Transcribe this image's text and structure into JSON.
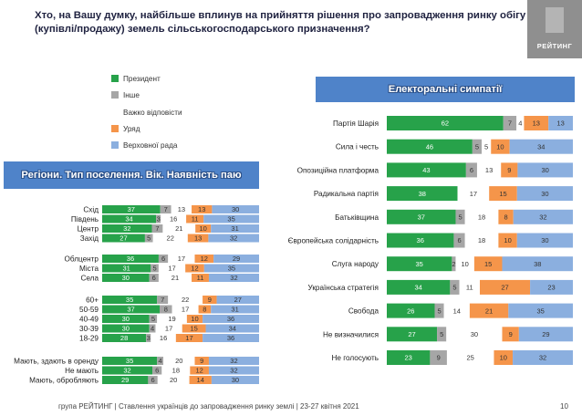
{
  "title": "Хто, на Вашу думку, найбільше вплинув на прийняття рішення про запровадження ринку обігу (купівлі/продажу) земель сільськогосподарського призначення?",
  "logo_text": "РЕЙТИНГ",
  "elect_banner": "Електоральні симпатії",
  "reg_banner": "Регіони. Тип поселення. Вік. Наявність паю",
  "footer": "група РЕЙТИНГ | Ставлення українців до запровадження ринку землі | 23-27 квітня 2021",
  "page_number": "10",
  "colors": {
    "president": "#27a24a",
    "other": "#a6a6a6",
    "hard": "#ffffff",
    "govt": "#f5954a",
    "rada": "#8bafdf"
  },
  "chart_data": [
    {
      "type": "bar",
      "stacked": true,
      "orientation": "horizontal",
      "series_names": [
        "Президент",
        "Інше",
        "Важко відповісти",
        "Уряд",
        "Верховної рада"
      ],
      "categories": [
        "Партія Шарія",
        "Сила і честь",
        "Опозиційна платформа",
        "Радикальна партія",
        "Батьківщина",
        "Європейська солідарність",
        "Слуга народу",
        "Українська стратегія",
        "Свобода",
        "Не визначилися",
        "Не голосують"
      ],
      "values": [
        [
          62,
          7,
          4,
          13,
          13
        ],
        [
          46,
          5,
          5,
          10,
          34
        ],
        [
          43,
          6,
          13,
          9,
          30
        ],
        [
          38,
          0,
          17,
          15,
          30
        ],
        [
          37,
          5,
          18,
          8,
          32
        ],
        [
          36,
          6,
          18,
          10,
          30
        ],
        [
          35,
          2,
          10,
          15,
          38
        ],
        [
          34,
          5,
          11,
          27,
          23
        ],
        [
          26,
          5,
          14,
          21,
          35
        ],
        [
          27,
          5,
          30,
          9,
          29
        ],
        [
          23,
          9,
          25,
          10,
          32
        ]
      ]
    },
    {
      "type": "bar",
      "stacked": true,
      "orientation": "horizontal",
      "series_names": [
        "Президент",
        "Інше",
        "Важко відповісти",
        "Уряд",
        "Верховної рада"
      ],
      "categories": [
        "Схід",
        "Південь",
        "Центр",
        "Захід",
        "Облцентр",
        "Міста",
        "Села",
        "60+",
        "50-59",
        "40-49",
        "30-39",
        "18-29",
        "Мають, здають в оренду",
        "Не мають",
        "Мають, обробляють"
      ],
      "values": [
        [
          37,
          7,
          13,
          13,
          30
        ],
        [
          34,
          3,
          16,
          11,
          35
        ],
        [
          32,
          7,
          21,
          10,
          31
        ],
        [
          27,
          5,
          22,
          13,
          32
        ],
        [
          36,
          6,
          17,
          12,
          29
        ],
        [
          31,
          5,
          17,
          12,
          35
        ],
        [
          30,
          6,
          21,
          11,
          32
        ],
        [
          35,
          7,
          22,
          9,
          27
        ],
        [
          37,
          8,
          17,
          8,
          31
        ],
        [
          30,
          5,
          19,
          10,
          36
        ],
        [
          30,
          4,
          17,
          15,
          34
        ],
        [
          28,
          3,
          16,
          17,
          36
        ],
        [
          35,
          4,
          20,
          9,
          32
        ],
        [
          32,
          6,
          18,
          12,
          32
        ],
        [
          29,
          6,
          20,
          14,
          30
        ]
      ]
    }
  ]
}
